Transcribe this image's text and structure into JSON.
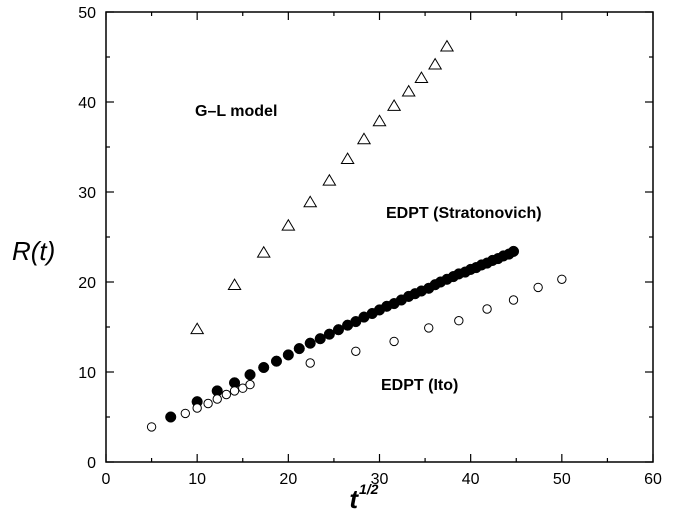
{
  "chart_data": {
    "type": "scatter",
    "xlabel": "t",
    "xlabel_sup": "1/2",
    "ylabel": "R(t)",
    "xlim": [
      0,
      60
    ],
    "ylim": [
      0,
      50
    ],
    "x_ticks": [
      0,
      10,
      20,
      30,
      40,
      50,
      60
    ],
    "y_ticks": [
      0,
      10,
      20,
      30,
      40,
      50
    ],
    "grid": false,
    "annotations": [
      {
        "text": "G–L model",
        "x": 9.8,
        "y": 39.8
      },
      {
        "text": "EDPT (Stratonovich)",
        "x": 30.8,
        "y": 27.5
      },
      {
        "text": "EDPT (Ito)",
        "x": 30.2,
        "y": 9.5
      }
    ],
    "series": [
      {
        "marker": "triangle-open",
        "x": [
          10.0,
          14.1,
          17.3,
          20.0,
          22.4,
          24.5,
          26.5,
          28.3,
          30.0,
          31.6,
          33.2,
          34.6,
          36.1,
          37.4
        ],
        "y": [
          14.7,
          19.6,
          23.2,
          26.2,
          28.8,
          31.2,
          33.6,
          35.8,
          37.8,
          39.5,
          41.1,
          42.6,
          44.1,
          46.1
        ]
      },
      {
        "marker": "circle-filled",
        "x": [
          7.1,
          10.0,
          12.2,
          14.1,
          15.8,
          17.3,
          18.7,
          20.0,
          21.2,
          22.4,
          23.5,
          24.5,
          25.5,
          26.5,
          27.4,
          28.3,
          29.2,
          30.0,
          30.8,
          31.6,
          32.4,
          33.2,
          33.9,
          34.6,
          35.4,
          36.1,
          36.7,
          37.4,
          38.1,
          38.7,
          39.4,
          40.0,
          40.6,
          41.2,
          41.8,
          42.4,
          43.0,
          43.6,
          44.2,
          44.7
        ],
        "y": [
          5.0,
          6.7,
          7.9,
          8.8,
          9.7,
          10.5,
          11.2,
          11.9,
          12.6,
          13.2,
          13.7,
          14.2,
          14.7,
          15.2,
          15.6,
          16.1,
          16.5,
          16.9,
          17.3,
          17.6,
          18.0,
          18.4,
          18.7,
          19.0,
          19.3,
          19.7,
          20.0,
          20.3,
          20.6,
          20.9,
          21.1,
          21.4,
          21.6,
          21.9,
          22.1,
          22.4,
          22.6,
          22.9,
          23.1,
          23.4
        ]
      },
      {
        "marker": "circle-open",
        "x": [
          5.0,
          8.7,
          10.0,
          11.2,
          12.2,
          13.2,
          14.1,
          15.0,
          15.8,
          22.4,
          27.4,
          31.6,
          35.4,
          38.7,
          41.8,
          44.7,
          47.4,
          50.0
        ],
        "y": [
          3.9,
          5.4,
          6.0,
          6.5,
          7.0,
          7.5,
          7.9,
          8.2,
          8.6,
          11.0,
          12.3,
          13.4,
          14.9,
          15.7,
          17.0,
          18.0,
          19.4,
          20.3
        ]
      }
    ]
  }
}
